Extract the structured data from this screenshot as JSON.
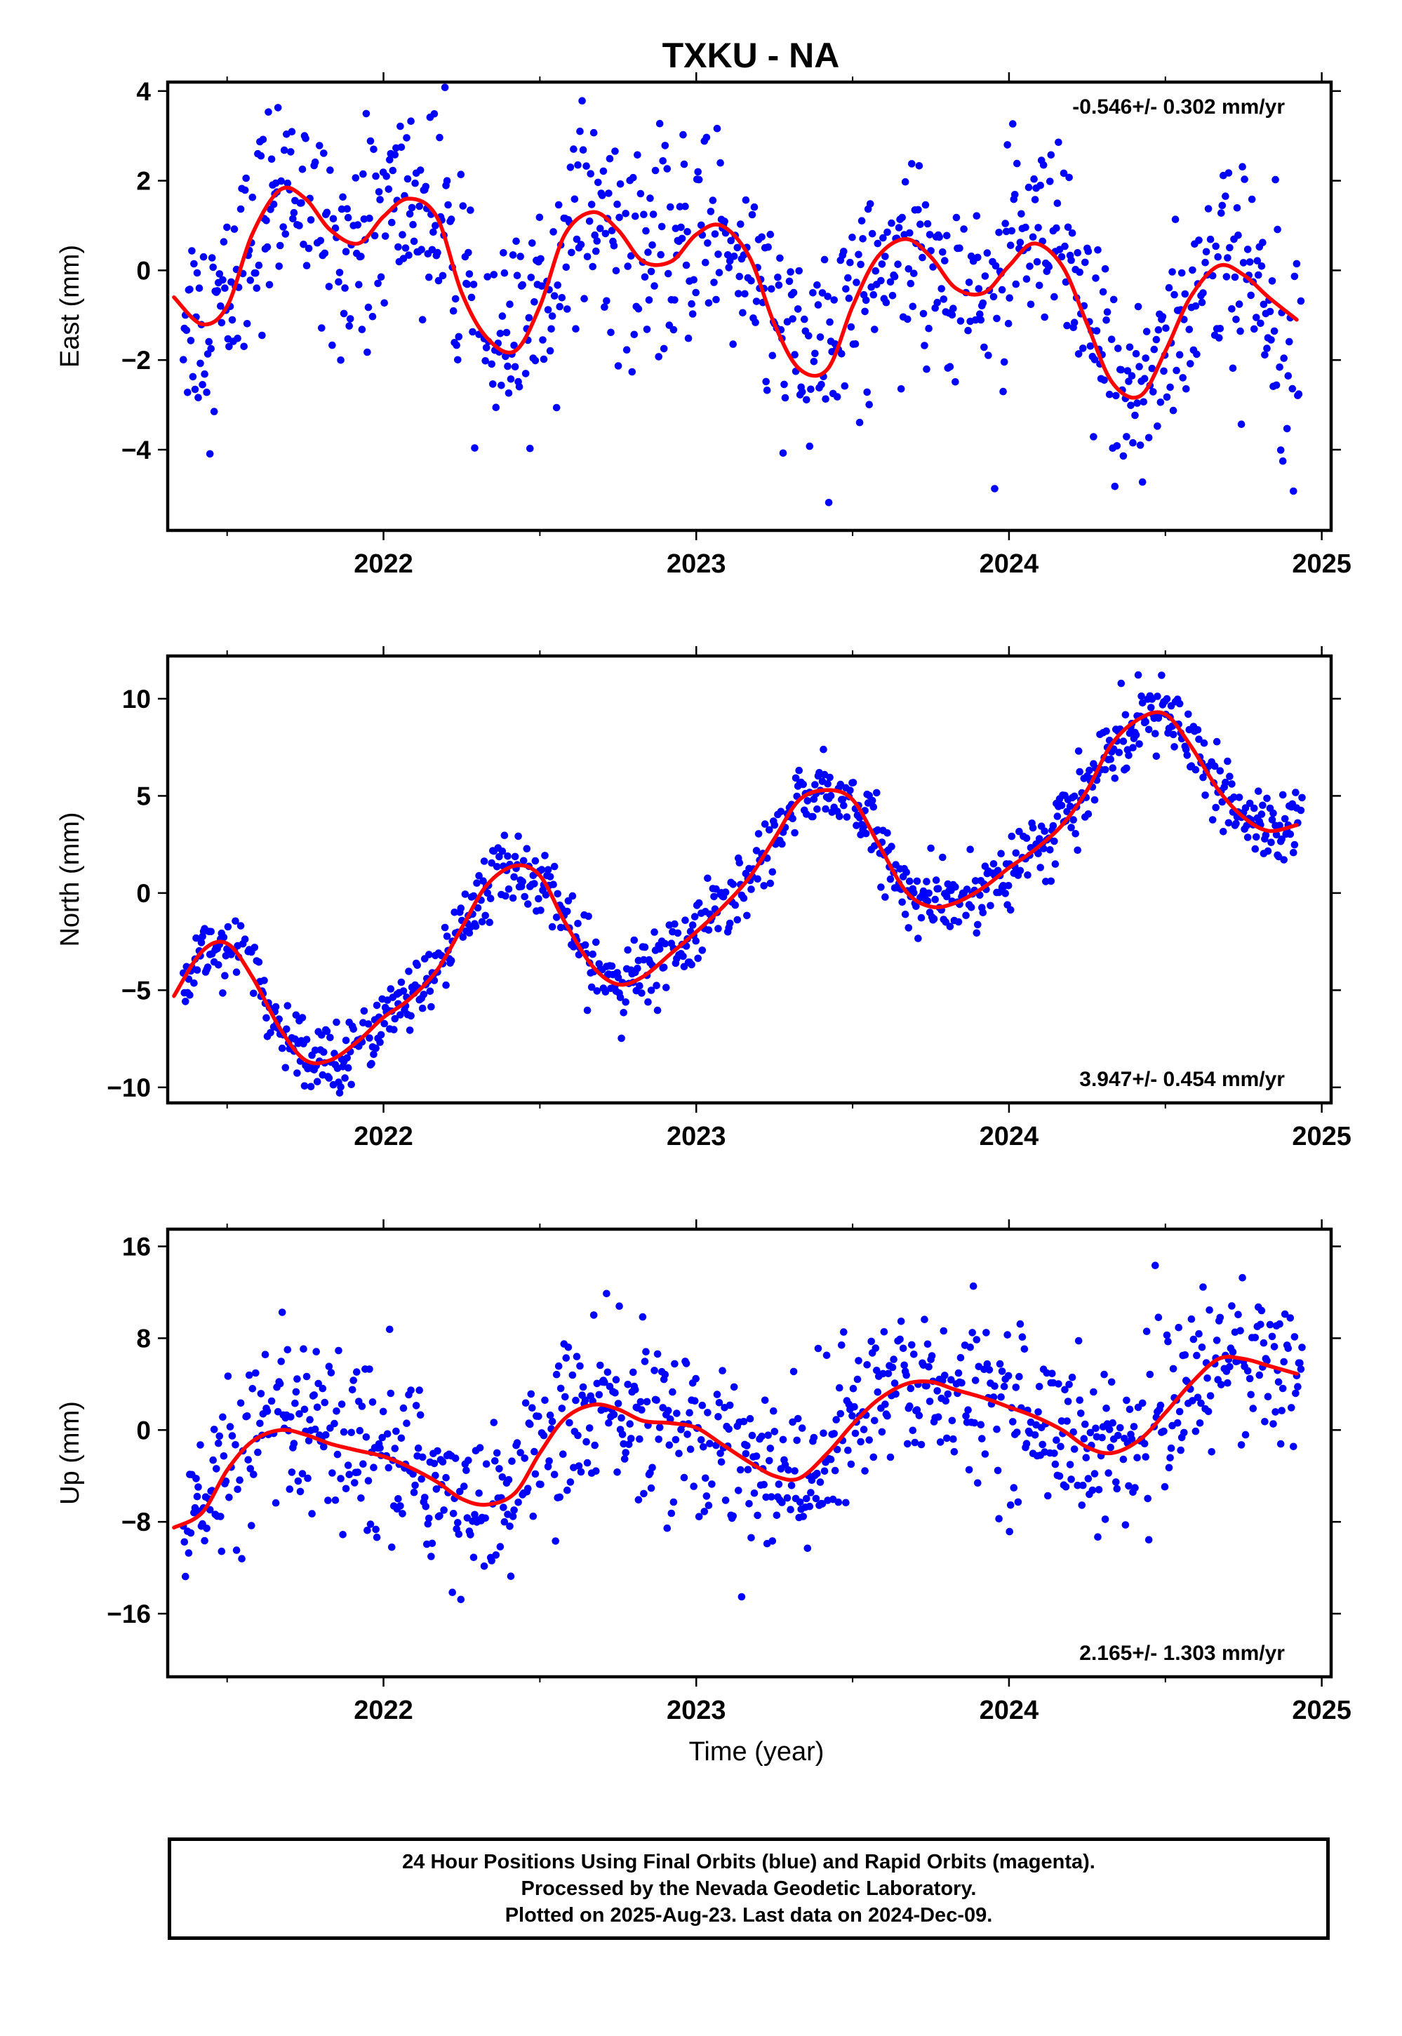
{
  "title": "TXKU - NA",
  "colors": {
    "points": "#0000ff",
    "fit": "#ff0000",
    "frame": "#000000"
  },
  "xlabel": "Time (year)",
  "x_ticks": [
    "2022",
    "2023",
    "2024",
    "2025"
  ],
  "x_range": [
    2021.31,
    2025.03
  ],
  "chart_data": [
    {
      "type": "scatter",
      "ylabel": "East (mm)",
      "ylim": [
        -5.8,
        4.2
      ],
      "yticks": [
        4,
        2,
        0,
        -2,
        -4
      ],
      "ytick_labels": [
        "4",
        "2",
        "0",
        "−2",
        "−4"
      ],
      "rate_label": "-0.546+/- 0.302 mm/yr",
      "rate_position": "top-right",
      "fit": {
        "name": "",
        "x": [
          2021.33,
          2021.42,
          2021.5,
          2021.58,
          2021.67,
          2021.75,
          2021.83,
          2021.92,
          2022.0,
          2022.08,
          2022.17,
          2022.25,
          2022.33,
          2022.42,
          2022.5,
          2022.58,
          2022.67,
          2022.75,
          2022.83,
          2022.92,
          2023.0,
          2023.08,
          2023.17,
          2023.25,
          2023.33,
          2023.42,
          2023.5,
          2023.58,
          2023.67,
          2023.75,
          2023.83,
          2023.92,
          2024.0,
          2024.08,
          2024.17,
          2024.25,
          2024.33,
          2024.42,
          2024.5,
          2024.58,
          2024.67,
          2024.75,
          2024.83,
          2024.92
        ],
        "y": [
          -0.6,
          -1.2,
          -0.8,
          0.8,
          1.8,
          1.6,
          0.9,
          0.6,
          1.2,
          1.6,
          1.2,
          -0.5,
          -1.5,
          -1.8,
          -0.8,
          0.8,
          1.3,
          0.9,
          0.2,
          0.2,
          0.8,
          1.0,
          0.3,
          -1.2,
          -2.2,
          -2.2,
          -0.8,
          0.3,
          0.7,
          0.3,
          -0.4,
          -0.5,
          0.1,
          0.6,
          0.1,
          -1.2,
          -2.5,
          -2.8,
          -1.8,
          -0.6,
          0.1,
          -0.1,
          -0.6,
          -1.1
        ]
      }
    },
    {
      "type": "scatter",
      "ylabel": "North (mm)",
      "ylim": [
        -10.8,
        12.2
      ],
      "yticks": [
        10,
        5,
        0,
        -5,
        -10
      ],
      "ytick_labels": [
        "10",
        "5",
        "0",
        "−5",
        "−10"
      ],
      "rate_label": "3.947+/- 0.454 mm/yr",
      "rate_position": "bottom-right",
      "fit": {
        "name": "",
        "x": [
          2021.33,
          2021.42,
          2021.5,
          2021.58,
          2021.67,
          2021.75,
          2021.83,
          2021.92,
          2022.0,
          2022.08,
          2022.17,
          2022.25,
          2022.33,
          2022.42,
          2022.5,
          2022.58,
          2022.67,
          2022.75,
          2022.83,
          2022.92,
          2023.0,
          2023.08,
          2023.17,
          2023.25,
          2023.33,
          2023.42,
          2023.5,
          2023.58,
          2023.67,
          2023.75,
          2023.83,
          2023.92,
          2024.0,
          2024.08,
          2024.17,
          2024.25,
          2024.33,
          2024.42,
          2024.5,
          2024.58,
          2024.67,
          2024.75,
          2024.83,
          2024.92
        ],
        "y": [
          -5.3,
          -3.0,
          -2.6,
          -4.3,
          -7.0,
          -8.6,
          -8.6,
          -7.6,
          -6.4,
          -5.5,
          -4.0,
          -1.8,
          0.4,
          1.4,
          0.9,
          -1.5,
          -3.8,
          -4.7,
          -4.3,
          -3.1,
          -2.0,
          -0.8,
          0.8,
          2.8,
          4.8,
          5.3,
          4.8,
          2.6,
          0.1,
          -0.7,
          -0.5,
          0.3,
          1.3,
          2.2,
          3.5,
          5.3,
          7.7,
          9.0,
          9.2,
          7.6,
          5.3,
          3.9,
          3.2,
          3.5
        ]
      }
    },
    {
      "type": "scatter",
      "ylabel": "Up (mm)",
      "ylim": [
        -21.5,
        17.5
      ],
      "yticks": [
        16,
        8,
        0,
        -8,
        -16
      ],
      "ytick_labels": [
        "16",
        "8",
        "0",
        "−8",
        "−16"
      ],
      "rate_label": "2.165+/- 1.303 mm/yr",
      "rate_position": "bottom-right",
      "fit": {
        "name": "",
        "x": [
          2021.33,
          2021.42,
          2021.5,
          2021.58,
          2021.67,
          2021.75,
          2021.83,
          2021.92,
          2022.0,
          2022.08,
          2022.17,
          2022.25,
          2022.33,
          2022.42,
          2022.5,
          2022.58,
          2022.67,
          2022.75,
          2022.83,
          2022.92,
          2023.0,
          2023.08,
          2023.17,
          2023.25,
          2023.33,
          2023.42,
          2023.5,
          2023.58,
          2023.67,
          2023.75,
          2023.83,
          2023.92,
          2024.0,
          2024.08,
          2024.17,
          2024.25,
          2024.33,
          2024.42,
          2024.5,
          2024.58,
          2024.67,
          2024.75,
          2024.83,
          2024.92
        ],
        "y": [
          -8.5,
          -7.2,
          -3.5,
          -1.0,
          0.0,
          -0.4,
          -1.2,
          -1.8,
          -2.3,
          -3.2,
          -4.5,
          -6.0,
          -6.5,
          -5.5,
          -2.0,
          1.0,
          2.2,
          1.8,
          0.8,
          0.6,
          0.2,
          -1.2,
          -2.8,
          -4.0,
          -4.2,
          -2.0,
          0.5,
          2.6,
          4.0,
          4.2,
          3.5,
          2.8,
          2.0,
          1.2,
          0.0,
          -1.5,
          -2.0,
          -0.8,
          1.5,
          4.0,
          6.2,
          6.2,
          5.6,
          4.9
        ]
      }
    }
  ],
  "footer": {
    "line1": "24 Hour Positions Using Final Orbits (blue) and Rapid Orbits (magenta).",
    "line2": "Processed by the Nevada Geodetic Laboratory.",
    "line3": "Plotted on 2025-Aug-23. Last data on 2024-Dec-09."
  }
}
